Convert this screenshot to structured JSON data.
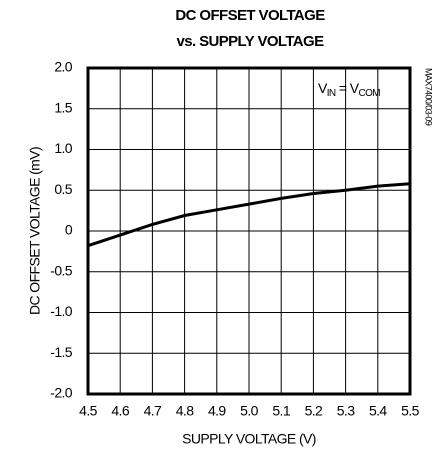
{
  "chart_data": {
    "type": "line",
    "title": [
      "DC OFFSET VOLTAGE",
      "vs. SUPPLY VOLTAGE"
    ],
    "xlabel": "SUPPLY VOLTAGE (V)",
    "ylabel": "DC OFFSET VOLTAGE (mV)",
    "annotation": [
      "V",
      "IN",
      " = V",
      "COM"
    ],
    "side_note": "MAX7400/03-09",
    "x": [
      4.5,
      4.6,
      4.7,
      4.8,
      4.9,
      5.0,
      5.1,
      5.2,
      5.3,
      5.4,
      5.5
    ],
    "series": [
      {
        "color": "#000000",
        "values": [
          -0.18,
          -0.05,
          0.08,
          0.19,
          0.26,
          0.33,
          0.4,
          0.46,
          0.5,
          0.55,
          0.58
        ]
      }
    ],
    "xlim": [
      4.5,
      5.5
    ],
    "xticks": [
      4.5,
      4.6,
      4.7,
      4.8,
      4.9,
      {
        "value": 5.0,
        "label": "5.0"
      },
      5.1,
      5.2,
      5.3,
      5.4,
      5.5
    ],
    "ylim": [
      -2,
      2
    ],
    "yticks": [
      {
        "value": -2,
        "label": "-2.0"
      },
      -1.5,
      {
        "value": -1,
        "label": "-1.0"
      },
      -0.5,
      0,
      0.5,
      {
        "value": 1,
        "label": "1.0"
      },
      1.5,
      {
        "value": 2,
        "label": "2.0"
      }
    ],
    "grid": true
  }
}
